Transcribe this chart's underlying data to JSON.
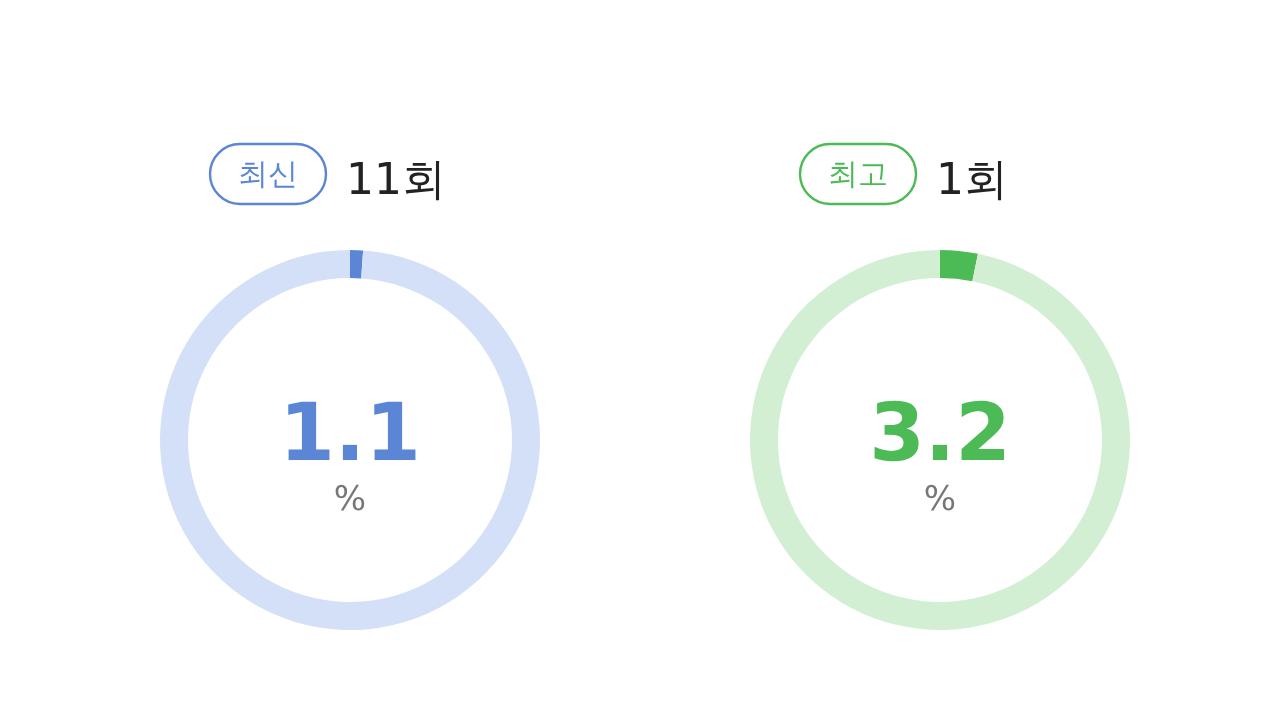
{
  "chart_data": [
    {
      "type": "donut",
      "title": "11회",
      "annotations": [
        "최신",
        "%"
      ],
      "categories": [
        null,
        null
      ],
      "values": [
        1.1,
        98.9
      ],
      "colors": [
        "#5b86d6",
        "#d3e0f7"
      ],
      "value_labels": [
        "1.1",
        null
      ]
    },
    {
      "type": "donut",
      "title": "1회",
      "annotations": [
        "최고",
        "%"
      ],
      "categories": [
        null,
        null
      ],
      "values": [
        3.2,
        96.8
      ],
      "colors": [
        "#4cbb56",
        "#d2efd3"
      ],
      "value_labels": [
        "3.2",
        null
      ]
    }
  ]
}
